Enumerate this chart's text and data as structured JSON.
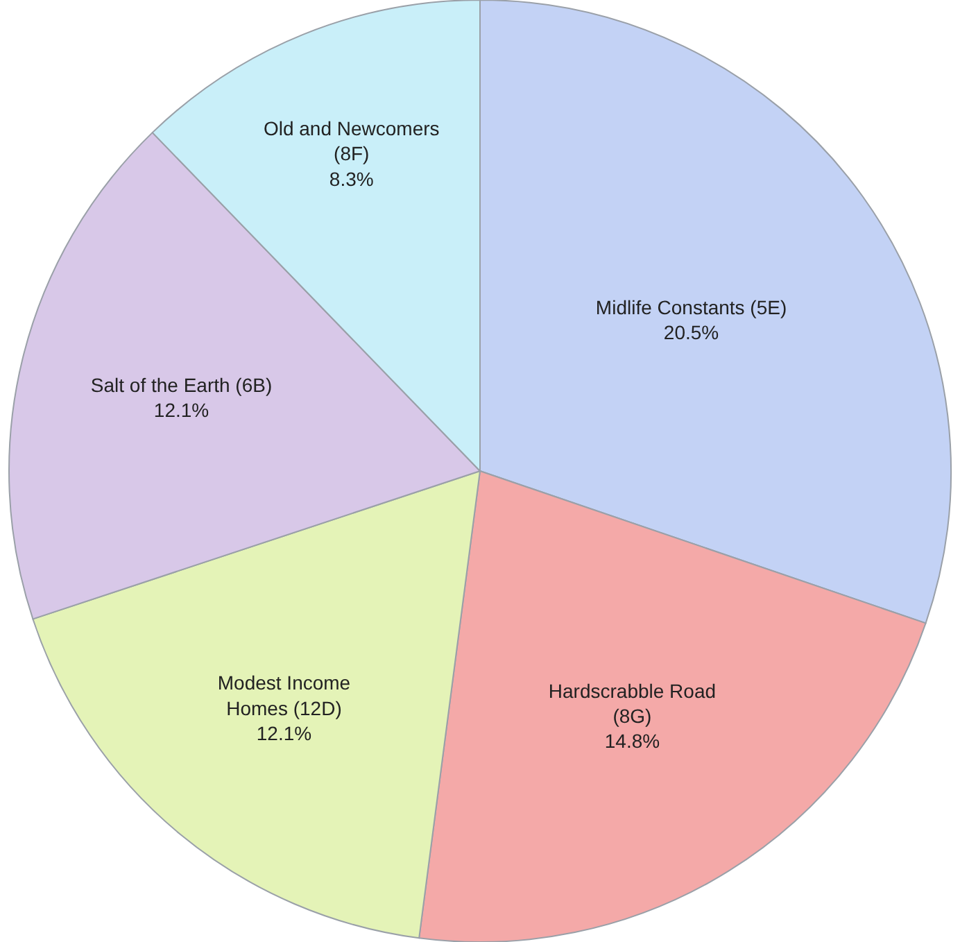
{
  "chart_data": {
    "type": "pie",
    "categories": [
      "Midlife Constants (5E)",
      "Hardscrabble Road\n(8G)",
      "Modest Income\nHomes (12D)",
      "Salt of the Earth (6B)",
      "Old and Newcomers\n(8F)"
    ],
    "values": [
      20.5,
      14.8,
      12.1,
      12.1,
      8.3
    ],
    "value_labels": [
      "20.5%",
      "14.8%",
      "12.1%",
      "12.1%",
      "8.3%"
    ],
    "colors": [
      "#c3d2f5",
      "#f4a9a8",
      "#e4f3b7",
      "#d8c8e8",
      "#c9eff9"
    ],
    "legend": false
  }
}
